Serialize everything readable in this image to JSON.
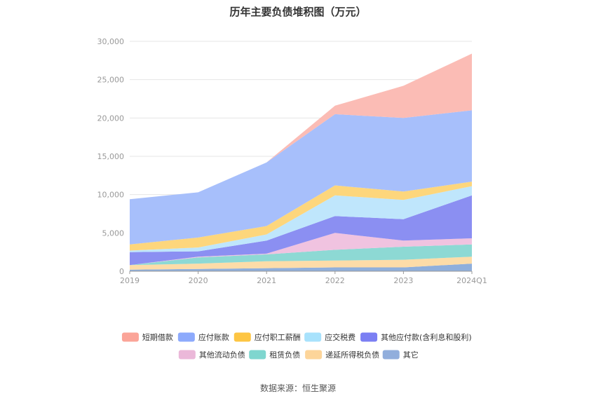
{
  "chart_data": {
    "type": "area",
    "stacked": true,
    "title": "历年主要负债堆积图（万元）",
    "categories": [
      "2019",
      "2020",
      "2021",
      "2022",
      "2023",
      "2024Q1"
    ],
    "ylim": [
      0,
      30000
    ],
    "yticks": [
      0,
      5000,
      10000,
      15000,
      20000,
      25000,
      30000
    ],
    "ytick_labels": [
      "0",
      "5,000",
      "10,000",
      "15,000",
      "20,000",
      "25,000",
      "30,000"
    ],
    "grid": true,
    "legend_position": "bottom",
    "series": [
      {
        "name": "其它",
        "color": "#8fafdc",
        "values": [
          200,
          300,
          400,
          500,
          500,
          1000
        ]
      },
      {
        "name": "递延所得税负债",
        "color": "#fddca8",
        "values": [
          600,
          700,
          900,
          900,
          1000,
          900
        ]
      },
      {
        "name": "租赁负债",
        "color": "#8dd9d4",
        "values": [
          0,
          800,
          900,
          1400,
          1700,
          1600
        ]
      },
      {
        "name": "其他流动负债",
        "color": "#f0c3e0",
        "values": [
          0,
          100,
          100,
          2200,
          800,
          800
        ]
      },
      {
        "name": "其他应付款(含利息和股利)",
        "color": "#8b8ff2",
        "values": [
          1700,
          700,
          1700,
          2200,
          2800,
          5600
        ]
      },
      {
        "name": "应交税费",
        "color": "#bfe6fc",
        "values": [
          200,
          500,
          800,
          2700,
          2500,
          1200
        ]
      },
      {
        "name": "应付职工薪酬",
        "color": "#fdd67c",
        "values": [
          800,
          1300,
          1100,
          1300,
          1100,
          600
        ]
      },
      {
        "name": "应付账款",
        "color": "#a7bffb",
        "values": [
          5900,
          5900,
          8300,
          9300,
          9600,
          9300
        ]
      },
      {
        "name": "短期借款",
        "color": "#fbbcb5",
        "values": [
          0,
          0,
          0,
          1100,
          4200,
          7400
        ]
      }
    ],
    "legend": [
      {
        "name": "短期借款",
        "color": "#fba498"
      },
      {
        "name": "应付账款",
        "color": "#8daafc"
      },
      {
        "name": "应付职工薪酬",
        "color": "#fdc543"
      },
      {
        "name": "应交税费",
        "color": "#a8e2fc"
      },
      {
        "name": "其他应付款(含利息和股利)",
        "color": "#7b7ff3"
      },
      {
        "name": "其他流动负债",
        "color": "#ebb8d9"
      },
      {
        "name": "租赁负债",
        "color": "#7fd6cf"
      },
      {
        "name": "递延所得税负债",
        "color": "#fdd59a"
      },
      {
        "name": "其它",
        "color": "#91aedc"
      }
    ]
  },
  "footer": {
    "source": "数据来源：恒生聚源"
  }
}
